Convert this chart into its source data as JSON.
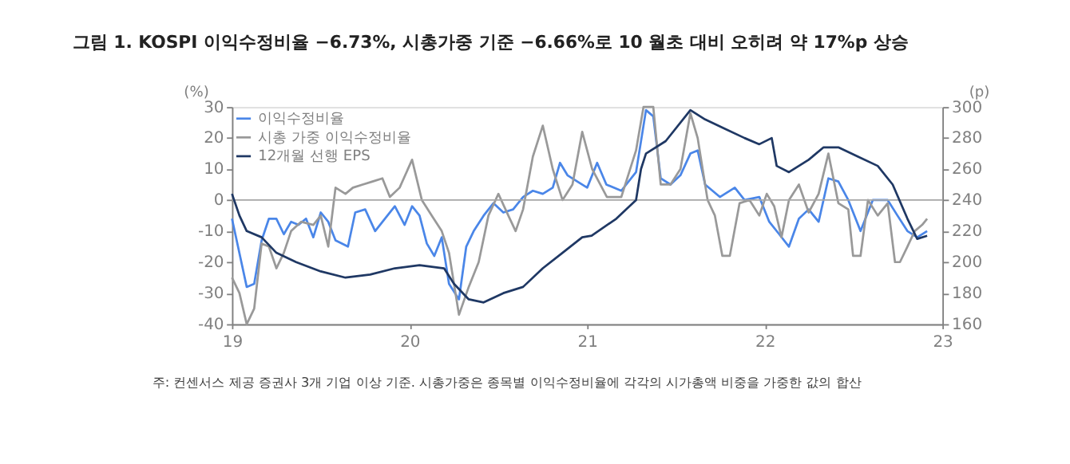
{
  "chart_data": {
    "type": "line",
    "title": "그림 1. KOSPI 이익수정비율 −6.73%, 시총가중 기준 −6.66%로 10 월초 대비 오히려 약 17%p 상승",
    "ylabel": "(%)",
    "y2label": "(p)",
    "annotations": [
      "주: 컨센서스 제공 증권사 3개 기업 이상 기준. 시총가중은 종목별 이익수정비율에 각각의 시가총액 비중을 가중한 값의 합산"
    ],
    "xlim": [
      2019,
      2023
    ],
    "xticks": [
      {
        "value": 2019,
        "label": "19"
      },
      {
        "value": 2020,
        "label": "20"
      },
      {
        "value": 2021,
        "label": "21"
      },
      {
        "value": 2022,
        "label": "22"
      },
      {
        "value": 2023,
        "label": "23"
      }
    ],
    "ylim": [
      -40,
      30
    ],
    "yticks": [
      -40,
      -30,
      -20,
      -10,
      0,
      10,
      20,
      30
    ],
    "y2lim": [
      160,
      300
    ],
    "y2ticks": [
      160,
      180,
      200,
      220,
      240,
      260,
      280,
      300
    ],
    "ref_lines": [
      {
        "axis": "y",
        "value": 0,
        "label": null,
        "color": "#a6a6a6"
      }
    ],
    "grid": false,
    "legend": "top left",
    "marker": "none",
    "line_style": "solid",
    "series": [
      {
        "name": "이익수정비율",
        "color": "#4a86e8",
        "x": [
          2019.0,
          2019.083,
          2019.125,
          2019.167,
          2019.208,
          2019.25,
          2019.292,
          2019.333,
          2019.375,
          2019.417,
          2019.458,
          2019.5,
          2019.542,
          2019.583,
          2019.653,
          2019.694,
          2019.75,
          2019.806,
          2019.861,
          2019.917,
          2019.972,
          2020.014,
          2020.056,
          2020.097,
          2020.139,
          2020.181,
          2020.222,
          2020.278,
          2020.319,
          2020.361,
          2020.417,
          2020.472,
          2020.528,
          2020.583,
          2020.639,
          2020.694,
          2020.75,
          2020.806,
          2020.847,
          2020.889,
          2020.944,
          2021.0,
          2021.056,
          2021.108,
          2021.192,
          2021.275,
          2021.331,
          2021.372,
          2021.414,
          2021.469,
          2021.525,
          2021.581,
          2021.622,
          2021.664,
          2021.747,
          2021.831,
          2021.886,
          2021.969,
          2022.025,
          2022.081,
          2022.136,
          2022.192,
          2022.247,
          2022.303,
          2022.358,
          2022.414,
          2022.47,
          2022.539,
          2022.608,
          2022.692,
          2022.747,
          2022.803,
          2022.858,
          2022.914
        ],
        "values": [
          -6,
          -28,
          -27,
          -13,
          -6,
          -6,
          -11,
          -7,
          -8,
          -6,
          -12,
          -4,
          -7,
          -13,
          -15,
          -4,
          -3,
          -10,
          -6,
          -2,
          -8,
          -2,
          -5,
          -14,
          -18,
          -12,
          -27,
          -32,
          -15,
          -10,
          -5,
          -1,
          -4,
          -3,
          1,
          3,
          2,
          4,
          12,
          8,
          6,
          4,
          12,
          5,
          3,
          9,
          29,
          27,
          7,
          5,
          8,
          15,
          16,
          5,
          1,
          4,
          0,
          1,
          -7,
          -11,
          -15,
          -6,
          -3,
          -7,
          7,
          6,
          0,
          -10,
          0,
          0,
          -5,
          -10,
          -12,
          -10
        ]
      },
      {
        "name": "시총 가중 이익수정비율",
        "color": "#999999",
        "x": [
          2019.0,
          2019.042,
          2019.083,
          2019.125,
          2019.167,
          2019.208,
          2019.25,
          2019.292,
          2019.333,
          2019.389,
          2019.458,
          2019.5,
          2019.542,
          2019.583,
          2019.639,
          2019.681,
          2019.736,
          2019.792,
          2019.847,
          2019.889,
          2019.944,
          2020.014,
          2020.069,
          2020.125,
          2020.181,
          2020.222,
          2020.278,
          2020.333,
          2020.389,
          2020.444,
          2020.5,
          2020.556,
          2020.597,
          2020.639,
          2020.694,
          2020.75,
          2020.806,
          2020.861,
          2020.917,
          2020.972,
          2021.028,
          2021.111,
          2021.192,
          2021.275,
          2021.317,
          2021.372,
          2021.414,
          2021.469,
          2021.525,
          2021.581,
          2021.622,
          2021.678,
          2021.719,
          2021.761,
          2021.803,
          2021.858,
          2021.914,
          2021.969,
          2022.011,
          2022.053,
          2022.094,
          2022.136,
          2022.192,
          2022.247,
          2022.303,
          2022.358,
          2022.414,
          2022.47,
          2022.497,
          2022.539,
          2022.581,
          2022.636,
          2022.692,
          2022.733,
          2022.761,
          2022.803,
          2022.844,
          2022.886,
          2022.914
        ],
        "values": [
          -25,
          -30,
          -40,
          -35,
          -14,
          -15,
          -22,
          -17,
          -10,
          -7,
          -8,
          -5,
          -15,
          4,
          2,
          4,
          5,
          6,
          7,
          1,
          4,
          13,
          0,
          -5,
          -10,
          -17,
          -37,
          -28,
          -20,
          -5,
          2,
          -5,
          -10,
          -3,
          14,
          24,
          10,
          0,
          5,
          22,
          10,
          1,
          1,
          16,
          30,
          30,
          5,
          5,
          10,
          28,
          20,
          0,
          -5,
          -18,
          -18,
          -1,
          0,
          -5,
          2,
          -2,
          -12,
          0,
          5,
          -4,
          2,
          15,
          -1,
          -3,
          -18,
          -18,
          0,
          -5,
          -1,
          -20,
          -20,
          -15,
          -10,
          -8,
          -6
        ]
      },
      {
        "name": "12개월 선행 EPS",
        "color": "#1f3864",
        "axis": "y2",
        "x": [
          2019.0,
          2019.042,
          2019.083,
          2019.167,
          2019.25,
          2019.361,
          2019.5,
          2019.639,
          2019.778,
          2019.917,
          2020.056,
          2020.194,
          2020.25,
          2020.333,
          2020.417,
          2020.528,
          2020.639,
          2020.75,
          2020.861,
          2020.972,
          2021.025,
          2021.164,
          2021.275,
          2021.303,
          2021.331,
          2021.442,
          2021.581,
          2021.664,
          2021.775,
          2021.886,
          2021.969,
          2022.039,
          2022.067,
          2022.136,
          2022.247,
          2022.331,
          2022.414,
          2022.525,
          2022.636,
          2022.72,
          2022.803,
          2022.858,
          2022.914
        ],
        "values": [
          244,
          230,
          220,
          216,
          206,
          200,
          194,
          190,
          192,
          196,
          198,
          196,
          186,
          176,
          174,
          180,
          184,
          196,
          206,
          216,
          217,
          228,
          240,
          260,
          270,
          278,
          298,
          292,
          286,
          280,
          276,
          280,
          262,
          258,
          266,
          274,
          274,
          268,
          262,
          250,
          228,
          215,
          217
        ]
      }
    ]
  }
}
